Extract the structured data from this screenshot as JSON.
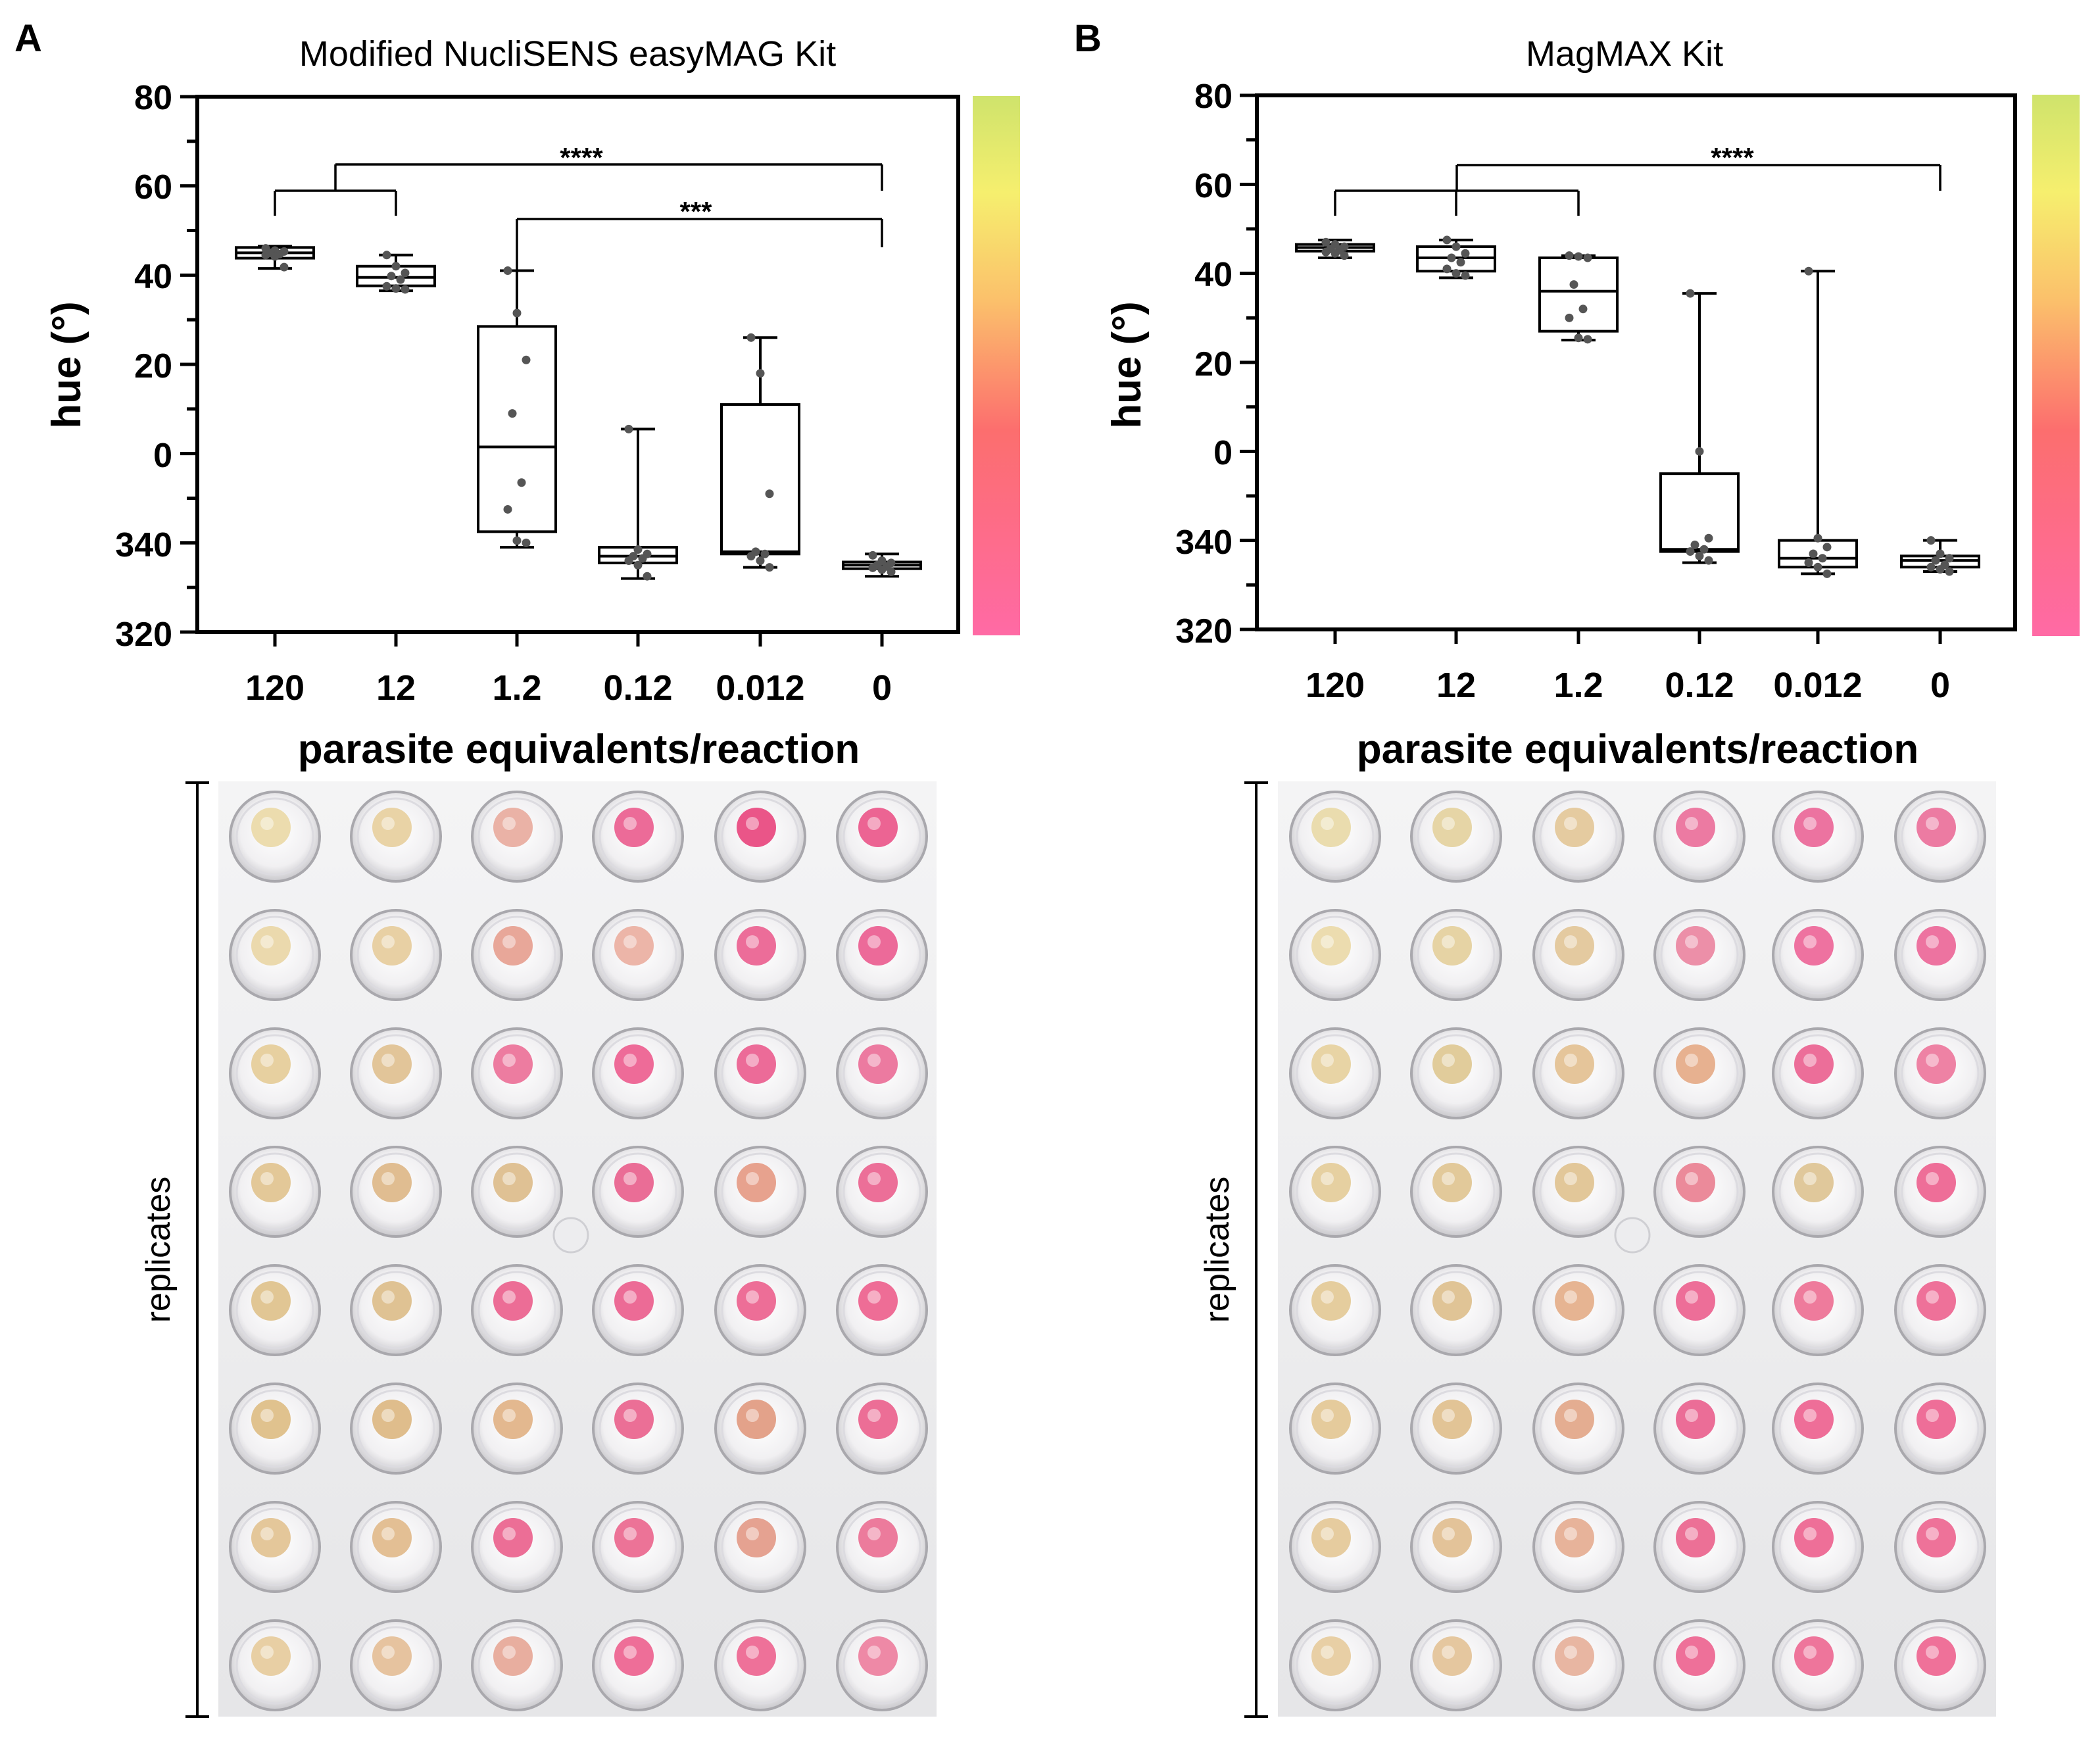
{
  "figure": {
    "panels": [
      {
        "letter": "A",
        "title": "Modified NucliSENS easyMAG Kit",
        "ylabel": "hue (°)",
        "xlabel": "parasite equivalents/reaction",
        "plate_label": "replicates",
        "well_colors": [
          [
            "#ecdcae",
            "#e9d3a6",
            "#eab2a6",
            "#ec6b98",
            "#ea5588",
            "#ec6493"
          ],
          [
            "#ebd9ad",
            "#e8d0a4",
            "#e8a799",
            "#ecb5a8",
            "#ec6d99",
            "#ec6a99"
          ],
          [
            "#e7d0a0",
            "#e2c599",
            "#ed7ca0",
            "#ee6b98",
            "#ec6b98",
            "#ec7aa0"
          ],
          [
            "#e3c898",
            "#e0bd91",
            "#dfc194",
            "#ea6d96",
            "#e7a28e",
            "#ec6f98"
          ],
          [
            "#e1c694",
            "#dfc293",
            "#ec6d96",
            "#ec6b96",
            "#ed6e97",
            "#ee6d96"
          ],
          [
            "#e0c28e",
            "#dfbd8c",
            "#e3b88f",
            "#eb6f96",
            "#e3a28a",
            "#ec6e96"
          ],
          [
            "#e4c79a",
            "#e3bf94",
            "#ec6e96",
            "#ec7397",
            "#e5a291",
            "#ec7b9c"
          ],
          [
            "#e8cfa4",
            "#e6c39f",
            "#e8ae9f",
            "#ee6e98",
            "#ee7199",
            "#ee89a6"
          ]
        ]
      },
      {
        "letter": "B",
        "title": "MagMAX Kit",
        "ylabel": "hue (°)",
        "xlabel": "parasite equivalents/reaction",
        "plate_label": "replicates",
        "well_colors": [
          [
            "#eadcae",
            "#e6d5a6",
            "#e5cba0",
            "#ec7aa2",
            "#ec73a0",
            "#ec7ba2"
          ],
          [
            "#ecdcaf",
            "#e6d3a4",
            "#e4caa0",
            "#ec8fa8",
            "#ee72a0",
            "#ed73a0"
          ],
          [
            "#e8d4a5",
            "#e1cc9b",
            "#e5c59a",
            "#e7b190",
            "#ec6e99",
            "#ee82a4"
          ],
          [
            "#e6d0a1",
            "#e2c99a",
            "#e2c799",
            "#eb8a9a",
            "#e0c89b",
            "#ee6e98"
          ],
          [
            "#e5cd9e",
            "#e0c496",
            "#e6b492",
            "#ed6e98",
            "#ee7b9c",
            "#ee7199"
          ],
          [
            "#e5cb9c",
            "#e2c496",
            "#e4ad91",
            "#eb6d97",
            "#ee6e98",
            "#ee6e98"
          ],
          [
            "#e6cc9f",
            "#e3c399",
            "#e7b39a",
            "#ec7096",
            "#ee6f98",
            "#ee7299"
          ],
          [
            "#e8cfa5",
            "#e5c79f",
            "#e8b6a2",
            "#ee7099",
            "#ee759b",
            "#ef7199"
          ]
        ]
      }
    ]
  },
  "chart_data": [
    {
      "type": "box",
      "title": "Modified NucliSENS easyMAG Kit",
      "xlabel": "parasite equivalents/reaction",
      "ylabel": "hue (°)",
      "categories": [
        "120",
        "12",
        "1.2",
        "0.12",
        "0.012",
        "0"
      ],
      "y_tick_labels": [
        "80",
        "60",
        "40",
        "20",
        "0",
        "340",
        "320"
      ],
      "ylim": [
        -40,
        80
      ],
      "y_axis_note": "circular hue scale: 340 and 320 correspond to -20 and -40",
      "boxes": [
        {
          "category": "120",
          "min": 41.5,
          "q1": 43.8,
          "median": 45,
          "q3": 46.2,
          "max": 46.5,
          "points": [
            46,
            45.5,
            45.3,
            45,
            44.7,
            44.5,
            44.2,
            41.8
          ]
        },
        {
          "category": "12",
          "min": 36.5,
          "q1": 37.6,
          "median": 39.5,
          "q3": 42,
          "max": 44.5,
          "points": [
            44.5,
            42,
            40.5,
            39.8,
            39,
            37.5,
            37,
            36.8
          ]
        },
        {
          "category": "1.2",
          "min": -21,
          "q1": -17.5,
          "median": 1.5,
          "q3": 28.5,
          "max": 41,
          "points": [
            41,
            31.5,
            21,
            9,
            -6.5,
            -12.5,
            -19.5,
            -20
          ]
        },
        {
          "category": "0.12",
          "min": -28,
          "q1": -24.5,
          "median": -23,
          "q3": -21,
          "max": 5.5,
          "points": [
            5.5,
            -21.5,
            -22.5,
            -23,
            -23.5,
            -24,
            -25,
            -27.5
          ]
        },
        {
          "category": "0.012",
          "min": -25.5,
          "q1": -22.5,
          "median": -22,
          "q3": 11,
          "max": 26,
          "points": [
            26,
            18,
            -9,
            -22,
            -22.5,
            -23,
            -24,
            -25.5
          ]
        },
        {
          "category": "0",
          "min": -27.5,
          "q1": -25.8,
          "median": -25,
          "q3": -24.3,
          "max": -22.5,
          "points": [
            -22.8,
            -24,
            -24.5,
            -25,
            -25.3,
            -25.6,
            -26,
            -26.5
          ]
        }
      ],
      "significance": [
        {
          "groups": [
            "120",
            "12"
          ],
          "versus": "0",
          "label": "****"
        },
        {
          "groups": [
            "1.2"
          ],
          "versus": "0",
          "label": "***"
        }
      ],
      "colorbar": {
        "low": "#ff6aa5",
        "mid": "#fc6e6e",
        "upper": "#fbc06b",
        "high": "#f6ef6e",
        "top": "#cfe36c"
      }
    },
    {
      "type": "box",
      "title": "MagMAX Kit",
      "xlabel": "parasite equivalents/reaction",
      "ylabel": "hue (°)",
      "categories": [
        "120",
        "12",
        "1.2",
        "0.12",
        "0.012",
        "0"
      ],
      "y_tick_labels": [
        "80",
        "60",
        "40",
        "20",
        "0",
        "340",
        "320"
      ],
      "ylim": [
        -40,
        80
      ],
      "y_axis_note": "circular hue scale: 340 and 320 correspond to -20 and -40",
      "boxes": [
        {
          "category": "120",
          "min": 43.5,
          "q1": 45,
          "median": 45.8,
          "q3": 46.5,
          "max": 47.5,
          "points": [
            47,
            46.5,
            46,
            45.5,
            45.2,
            44.8,
            44.5,
            44
          ]
        },
        {
          "category": "12",
          "min": 39,
          "q1": 40.5,
          "median": 43.5,
          "q3": 46,
          "max": 47.5,
          "points": [
            47.5,
            46,
            44.5,
            43.5,
            42.5,
            41,
            40,
            39.5
          ]
        },
        {
          "category": "1.2",
          "min": 25,
          "q1": 27,
          "median": 36,
          "q3": 43.5,
          "max": 44,
          "points": [
            44,
            43.8,
            43.5,
            37.5,
            32,
            30,
            25.5,
            25.2
          ]
        },
        {
          "category": "0.12",
          "min": -25,
          "q1": -22.5,
          "median": -22,
          "q3": -5,
          "max": 35.5,
          "points": [
            35.5,
            0,
            -19.5,
            -21,
            -22,
            -22.5,
            -23.5,
            -24.5
          ]
        },
        {
          "category": "0.012",
          "min": -27.5,
          "q1": -26,
          "median": -24,
          "q3": -20,
          "max": 40.5,
          "points": [
            40.5,
            -19.5,
            -21.5,
            -23,
            -24,
            -25,
            -26,
            -27.5
          ]
        },
        {
          "category": "0",
          "min": -27,
          "q1": -26,
          "median": -24.5,
          "q3": -23.5,
          "max": -20,
          "points": [
            -20,
            -23,
            -24,
            -24.5,
            -25.5,
            -26,
            -26.5,
            -27
          ]
        }
      ],
      "significance": [
        {
          "groups": [
            "120",
            "12",
            "1.2"
          ],
          "versus": "0",
          "label": "****"
        }
      ],
      "colorbar": {
        "low": "#ff6aa5",
        "mid": "#fc6e6e",
        "upper": "#fbc06b",
        "high": "#f6ef6e",
        "top": "#cfe36c"
      }
    }
  ]
}
